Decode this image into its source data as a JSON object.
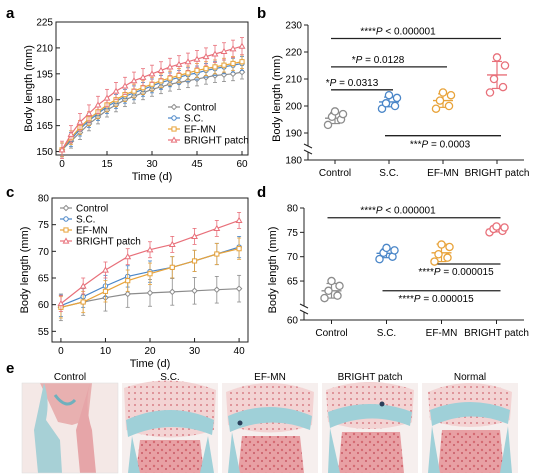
{
  "colors": {
    "Control": "#8c8c8c",
    "S.C.": "#4a86c8",
    "EF-MN": "#e8a33a",
    "BRIGHT patch": "#e8707a"
  },
  "panels": {
    "a": "a",
    "b": "b",
    "c": "c",
    "d": "d",
    "e": "e"
  },
  "chart_data": [
    {
      "id": "a",
      "type": "line",
      "xlabel": "Time (d)",
      "ylabel": "Body length (mm)",
      "xlim": [
        -2,
        62
      ],
      "ylim": [
        148,
        225
      ],
      "xticks": [
        "0",
        "15",
        "30",
        "45",
        "60"
      ],
      "yticks": [
        "150",
        "165",
        "180",
        "195",
        "210",
        "225"
      ],
      "x": [
        0,
        3,
        6,
        9,
        12,
        15,
        18,
        21,
        24,
        27,
        30,
        33,
        36,
        39,
        42,
        45,
        48,
        51,
        54,
        57,
        60
      ],
      "legend_position": "bottom-right",
      "series": [
        {
          "name": "Control",
          "values": [
            151,
            156,
            161,
            166,
            170,
            174,
            177,
            180,
            182,
            184,
            186,
            187.5,
            189,
            190,
            191,
            192,
            193,
            194,
            194.5,
            195,
            196
          ],
          "error": 4
        },
        {
          "name": "S.C.",
          "values": [
            151,
            157,
            163,
            168,
            172,
            176,
            179,
            182,
            184,
            186,
            188,
            190,
            191.5,
            193,
            194.5,
            195.5,
            197,
            198,
            199,
            200,
            201
          ],
          "error": 4
        },
        {
          "name": "EF-MN",
          "values": [
            151,
            158,
            164,
            169,
            173,
            177,
            180,
            183,
            185,
            187,
            189,
            191,
            192.5,
            194,
            195.5,
            197,
            198,
            199,
            200,
            201,
            202
          ],
          "error": 4
        },
        {
          "name": "BRIGHT patch",
          "values": [
            151,
            160,
            167,
            172,
            177,
            181,
            185,
            188,
            191,
            193,
            195,
            197,
            199,
            200.5,
            202,
            203.5,
            205,
            206.5,
            208,
            209.5,
            211
          ],
          "error": 5
        }
      ]
    },
    {
      "id": "b",
      "type": "scatter",
      "ylabel": "Body length (mm)",
      "ylim": [
        180,
        230
      ],
      "yticks": [
        "180",
        "190",
        "200",
        "210",
        "220",
        "230"
      ],
      "categories": [
        "Control",
        "S.C.",
        "EF-MN",
        "BRIGHT patch"
      ],
      "points": [
        [
          193,
          195,
          196,
          197,
          198
        ],
        [
          199,
          200,
          201,
          203,
          204
        ],
        [
          199,
          200,
          202,
          204,
          205
        ],
        [
          205,
          207,
          210,
          215,
          218
        ]
      ],
      "means": [
        195.5,
        201.5,
        202,
        211.5
      ],
      "sd": [
        2,
        1.8,
        2.5,
        5
      ],
      "annotations": [
        {
          "pair": [
            0,
            3
          ],
          "text_prefix": "****",
          "text_p": "P",
          "text_value": " < 0.000001"
        },
        {
          "pair": [
            0,
            2
          ],
          "text_prefix": "*",
          "text_p": "P",
          "text_value": " = 0.0128"
        },
        {
          "pair": [
            0,
            1
          ],
          "text_prefix": "*",
          "text_p": "P",
          "text_value": " = 0.0313"
        },
        {
          "pair": [
            1,
            3
          ],
          "text_prefix": "***",
          "text_p": "P",
          "text_value": " = 0.0003"
        }
      ]
    },
    {
      "id": "c",
      "type": "line",
      "xlabel": "Time (d)",
      "ylabel": "Body length (mm)",
      "xlim": [
        -2,
        42
      ],
      "ylim": [
        53,
        80
      ],
      "xticks": [
        "0",
        "10",
        "20",
        "30",
        "40"
      ],
      "yticks": [
        "55",
        "60",
        "65",
        "70",
        "75",
        "80"
      ],
      "x": [
        0,
        5,
        10,
        15,
        20,
        25,
        30,
        35,
        40
      ],
      "legend_position": "top-left",
      "series": [
        {
          "name": "Control",
          "values": [
            59.5,
            60.5,
            61.3,
            62,
            62.2,
            62.4,
            62.6,
            62.8,
            63
          ],
          "error": 2.5
        },
        {
          "name": "S.C.",
          "values": [
            59.8,
            61.5,
            63.5,
            65.3,
            66.2,
            67,
            68.2,
            69.5,
            70.8
          ],
          "error": 2
        },
        {
          "name": "EF-MN",
          "values": [
            59.5,
            60.5,
            62.5,
            64.5,
            65.8,
            67,
            68.2,
            69.5,
            70.5
          ],
          "error": 2
        },
        {
          "name": "BRIGHT patch",
          "values": [
            60.2,
            63.5,
            66.5,
            69,
            70.3,
            71.3,
            72.8,
            74.3,
            75.8
          ],
          "error": 1.5
        }
      ]
    },
    {
      "id": "d",
      "type": "scatter",
      "ylabel": "Body length (mm)",
      "ylim": [
        57,
        80
      ],
      "yticks": [
        "60",
        "65",
        "70",
        "75",
        "80"
      ],
      "categories": [
        "Control",
        "S.C.",
        "EF-MN",
        "BRIGHT patch"
      ],
      "points": [
        [
          61.5,
          62,
          63,
          64,
          65
        ],
        [
          69.5,
          70,
          70.8,
          71.3,
          71.8
        ],
        [
          69,
          69.8,
          70.5,
          72,
          72.5
        ],
        [
          75,
          75.3,
          75.7,
          76,
          76.2
        ]
      ],
      "means": [
        63,
        70.7,
        70.8,
        75.6
      ],
      "sd": [
        1.5,
        0.9,
        1.8,
        0.5
      ],
      "annotations": [
        {
          "pair": [
            0,
            3
          ],
          "text_prefix": "****",
          "text_p": "P",
          "text_value": " < 0.000001"
        },
        {
          "pair": [
            2,
            3
          ],
          "text_prefix": "****",
          "text_p": "P",
          "text_value": " = 0.000015"
        },
        {
          "pair": [
            1,
            3
          ],
          "text_prefix": "****",
          "text_p": "P",
          "text_value": " = 0.000015"
        }
      ]
    }
  ],
  "panel_e": {
    "labels": [
      "Control",
      "S.C.",
      "EF-MN",
      "BRIGHT patch",
      "Normal"
    ]
  }
}
